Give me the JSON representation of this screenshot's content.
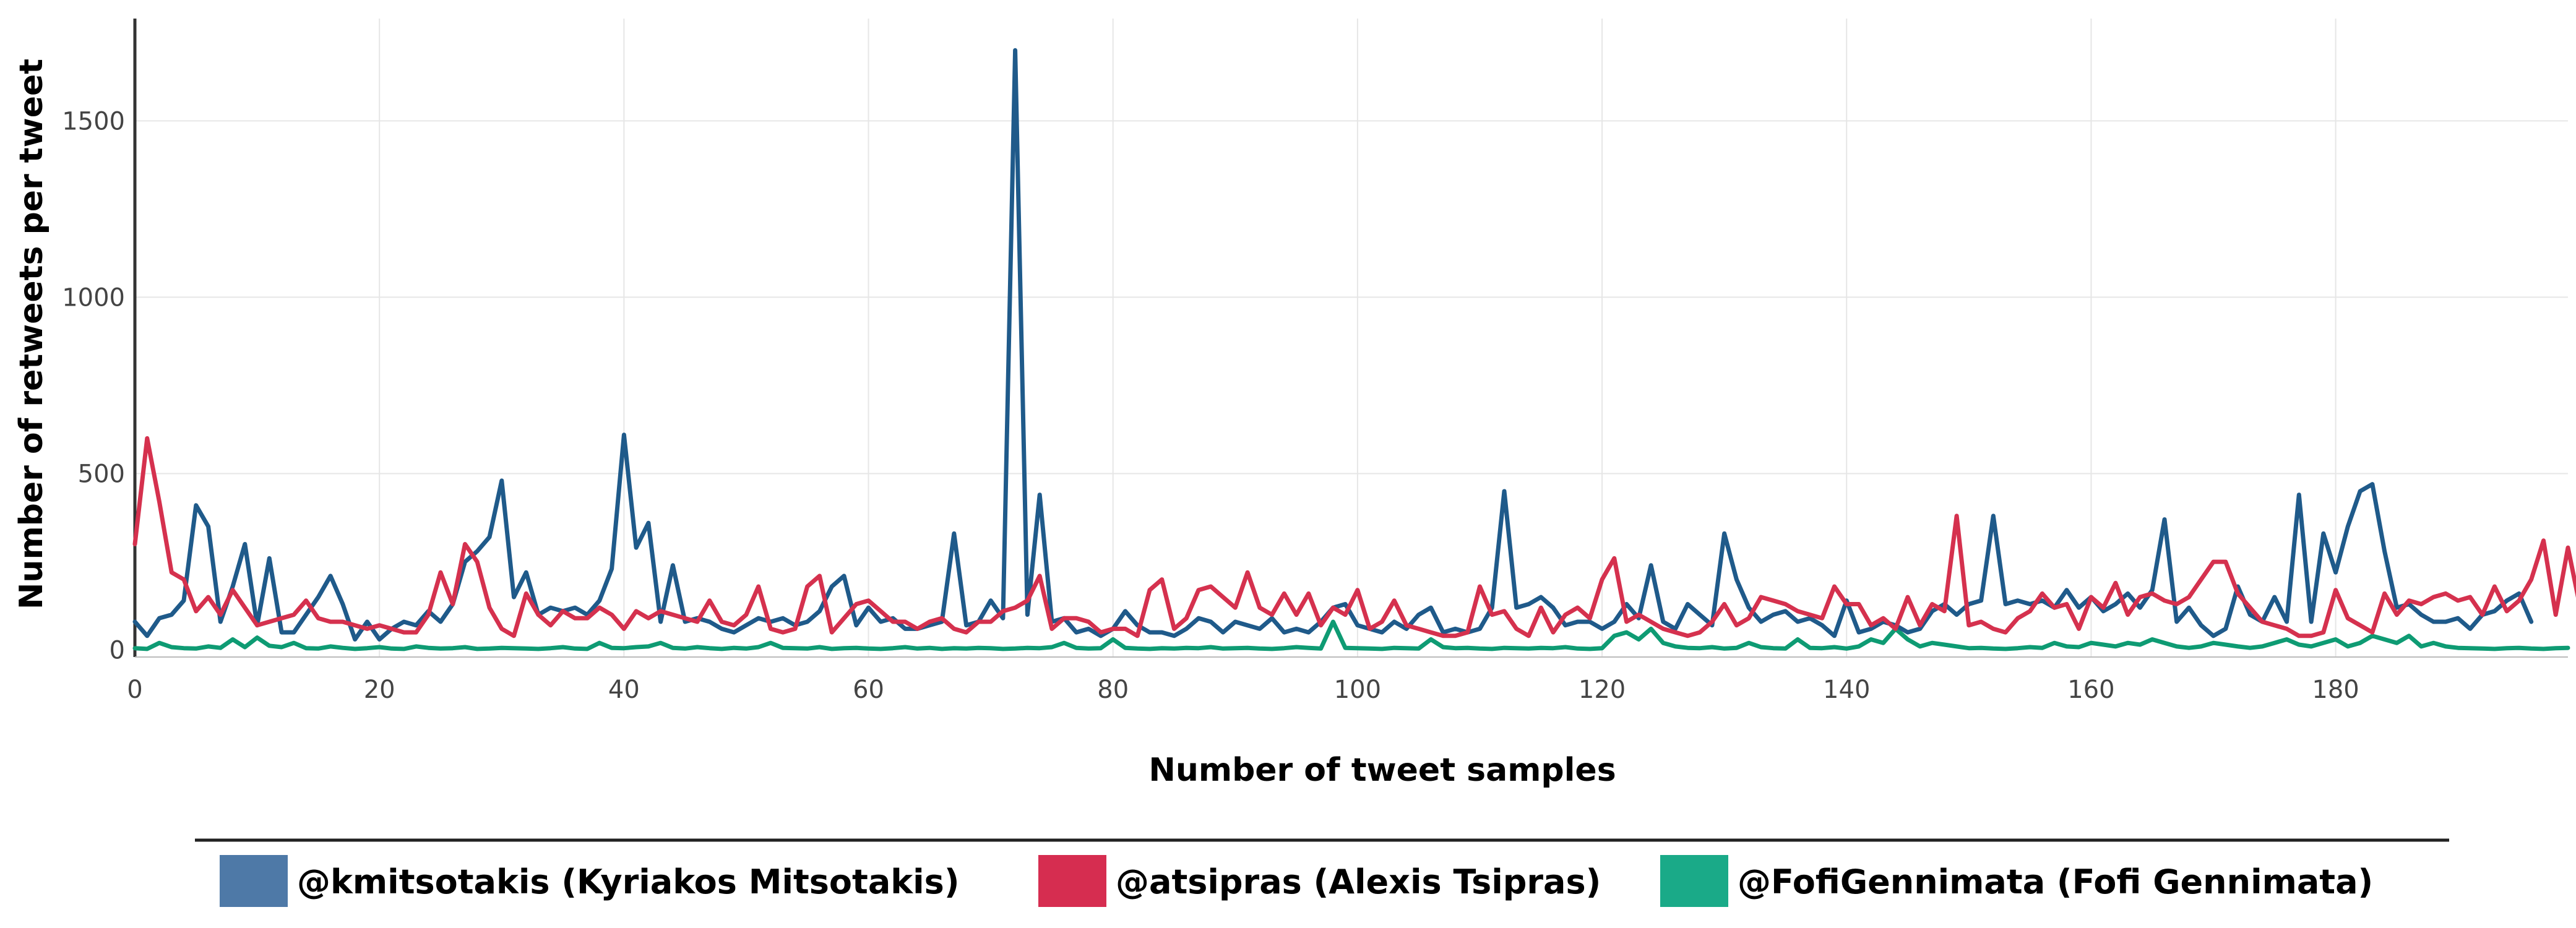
{
  "chart_data": {
    "type": "line",
    "title": "",
    "xlabel": "Number of tweet samples",
    "ylabel": "Number of retweets per tweet",
    "xlim": [
      0,
      199
    ],
    "ylim": [
      -20,
      1790
    ],
    "x_ticks": [
      0,
      20,
      40,
      60,
      80,
      100,
      120,
      140,
      160,
      180
    ],
    "y_ticks": [
      0,
      500,
      1000,
      1500
    ],
    "grid": true,
    "legend_position": "bottom",
    "series": [
      {
        "name": "@kmitsotakis (Kyriakos Mitsotakis)",
        "color": "#1f5a8a",
        "legend_color": "#4e79a7",
        "values": [
          80,
          40,
          90,
          100,
          140,
          410,
          350,
          80,
          180,
          300,
          70,
          260,
          50,
          50,
          100,
          150,
          210,
          130,
          30,
          80,
          30,
          60,
          80,
          70,
          110,
          80,
          130,
          250,
          280,
          320,
          480,
          150,
          220,
          100,
          120,
          110,
          120,
          100,
          140,
          230,
          610,
          290,
          360,
          80,
          240,
          80,
          90,
          80,
          60,
          50,
          70,
          90,
          80,
          90,
          70,
          80,
          110,
          180,
          210,
          70,
          120,
          80,
          90,
          60,
          60,
          70,
          80,
          330,
          70,
          80,
          140,
          90,
          1700,
          100,
          440,
          80,
          90,
          50,
          60,
          40,
          60,
          110,
          70,
          50,
          50,
          40,
          60,
          90,
          80,
          50,
          80,
          70,
          60,
          90,
          50,
          60,
          50,
          80,
          120,
          130,
          70,
          60,
          50,
          80,
          60,
          100,
          120,
          50,
          60,
          50,
          60,
          120,
          450,
          120,
          130,
          150,
          120,
          70,
          80,
          80,
          60,
          80,
          130,
          90,
          240,
          80,
          60,
          130,
          100,
          70,
          330,
          200,
          120,
          80,
          100,
          110,
          80,
          90,
          70,
          40,
          140,
          50,
          60,
          80,
          70,
          50,
          60,
          110,
          130,
          100,
          130,
          140,
          380,
          130,
          140,
          130,
          140,
          120,
          170,
          120,
          150,
          110,
          130,
          160,
          120,
          170,
          370,
          80,
          120,
          70,
          40,
          60,
          180,
          100,
          80,
          150,
          80,
          440,
          80,
          330,
          220,
          350,
          450,
          470,
          280,
          120,
          130,
          100,
          80,
          80,
          90,
          60,
          100,
          110,
          140,
          160,
          80
        ]
      },
      {
        "name": "@atsipras (Alexis Tsipras)",
        "color": "#d5314e",
        "legend_color": "#d62d50",
        "values": [
          300,
          600,
          420,
          220,
          200,
          110,
          150,
          100,
          170,
          120,
          70,
          80,
          90,
          100,
          140,
          90,
          80,
          80,
          70,
          60,
          70,
          60,
          50,
          50,
          100,
          220,
          130,
          300,
          250,
          120,
          60,
          40,
          160,
          100,
          70,
          110,
          90,
          90,
          120,
          100,
          60,
          110,
          90,
          110,
          100,
          90,
          80,
          140,
          80,
          70,
          100,
          180,
          60,
          50,
          60,
          180,
          210,
          50,
          90,
          130,
          140,
          110,
          80,
          80,
          60,
          80,
          90,
          60,
          50,
          80,
          80,
          110,
          120,
          140,
          210,
          60,
          90,
          90,
          80,
          50,
          60,
          60,
          40,
          170,
          200,
          60,
          90,
          170,
          180,
          150,
          120,
          220,
          120,
          100,
          160,
          100,
          160,
          70,
          120,
          100,
          170,
          60,
          80,
          140,
          70,
          60,
          50,
          40,
          40,
          50,
          180,
          100,
          110,
          60,
          40,
          120,
          50,
          100,
          120,
          90,
          200,
          260,
          80,
          100,
          80,
          60,
          50,
          40,
          50,
          80,
          130,
          70,
          90,
          150,
          140,
          130,
          110,
          100,
          90,
          180,
          130,
          130,
          70,
          90,
          60,
          150,
          70,
          130,
          110,
          380,
          70,
          80,
          60,
          50,
          90,
          110,
          160,
          120,
          130,
          60,
          150,
          120,
          190,
          100,
          150,
          160,
          140,
          130,
          150,
          200,
          250,
          250,
          160,
          120,
          80,
          70,
          60,
          40,
          40,
          50,
          170,
          90,
          70,
          50,
          160,
          100,
          140,
          130,
          150,
          160,
          140,
          150,
          100,
          180,
          110,
          140,
          200,
          310,
          100,
          290,
          120
        ]
      },
      {
        "name": "@FofiGennimata (Fofi Gennimata)",
        "color": "#0e9b73",
        "legend_color": "#1aaa88",
        "values": [
          5,
          3,
          20,
          8,
          5,
          4,
          10,
          6,
          30,
          8,
          35,
          12,
          8,
          20,
          5,
          4,
          10,
          6,
          3,
          5,
          8,
          4,
          3,
          10,
          6,
          4,
          5,
          8,
          3,
          4,
          6,
          5,
          4,
          3,
          5,
          8,
          4,
          3,
          20,
          6,
          5,
          8,
          10,
          20,
          6,
          4,
          8,
          5,
          3,
          6,
          4,
          8,
          20,
          6,
          5,
          4,
          8,
          3,
          5,
          6,
          4,
          3,
          5,
          8,
          4,
          6,
          3,
          5,
          4,
          6,
          5,
          3,
          4,
          6,
          5,
          8,
          20,
          6,
          4,
          5,
          30,
          6,
          4,
          3,
          5,
          4,
          6,
          5,
          8,
          4,
          5,
          6,
          4,
          3,
          5,
          8,
          6,
          4,
          80,
          6,
          5,
          4,
          3,
          6,
          5,
          4,
          30,
          8,
          5,
          6,
          4,
          3,
          6,
          5,
          4,
          6,
          5,
          8,
          4,
          3,
          5,
          40,
          50,
          30,
          60,
          20,
          10,
          6,
          5,
          8,
          4,
          6,
          20,
          8,
          5,
          4,
          30,
          6,
          5,
          8,
          4,
          10,
          30,
          20,
          60,
          30,
          10,
          20,
          15,
          10,
          5,
          6,
          4,
          3,
          5,
          8,
          6,
          20,
          10,
          8,
          20,
          15,
          10,
          20,
          15,
          30,
          20,
          10,
          6,
          10,
          20,
          15,
          10,
          6,
          10,
          20,
          30,
          15,
          10,
          20,
          30,
          10,
          20,
          40,
          30,
          20,
          40,
          10,
          20,
          10,
          6,
          5,
          4,
          3,
          5,
          6,
          4,
          3,
          5,
          6
        ]
      }
    ]
  }
}
